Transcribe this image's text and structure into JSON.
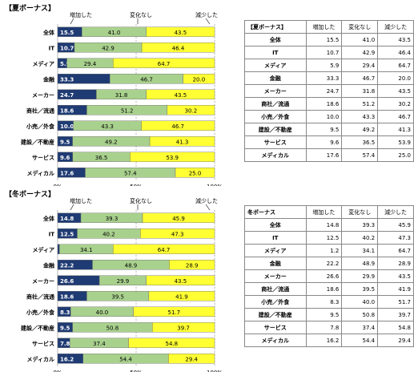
{
  "summer": {
    "section_title": "【夏ボーナス】",
    "legend": {
      "increase": "増加した",
      "nochange": "変化なし",
      "decrease": "減少した"
    },
    "table_header": [
      "【夏ボーナス】",
      "増加した",
      "変化なし",
      "減少した"
    ]
  },
  "winter": {
    "section_title": "【冬ボーナス】",
    "legend": {
      "increase": "増加した",
      "nochange": "変化なし",
      "decrease": "減少した"
    },
    "table_header": [
      "冬ボーナス",
      "増加した",
      "変化なし",
      "減少した"
    ]
  },
  "colors": {
    "increase": "#1f3b73",
    "nochange": "#a9d18e",
    "decrease": "#ffff33"
  },
  "chart_data": [
    {
      "type": "bar",
      "stacked": true,
      "orientation": "horizontal",
      "categories": [
        "全体",
        "IT",
        "メディア",
        "金融",
        "メーカー",
        "商社／流通",
        "小売／外食",
        "建設／不動産",
        "サービス",
        "メディカル"
      ],
      "series": [
        {
          "name": "増加した",
          "values": [
            15.5,
            10.7,
            5.9,
            33.3,
            24.7,
            18.6,
            10.0,
            9.5,
            9.6,
            17.6
          ]
        },
        {
          "name": "変化なし",
          "values": [
            41.0,
            42.9,
            29.4,
            46.7,
            31.8,
            51.2,
            43.3,
            49.2,
            36.5,
            57.4
          ]
        },
        {
          "name": "減少した",
          "values": [
            43.5,
            46.4,
            64.7,
            20.0,
            43.5,
            30.2,
            46.7,
            41.3,
            53.9,
            25.0
          ]
        }
      ],
      "xticks": [
        "0%",
        "50%",
        "100%"
      ],
      "xlim": [
        0,
        100
      ]
    },
    {
      "type": "bar",
      "stacked": true,
      "orientation": "horizontal",
      "categories": [
        "全体",
        "IT",
        "メディア",
        "金融",
        "メーカー",
        "商社／流通",
        "小売／外食",
        "建設／不動産",
        "サービス",
        "メディカル"
      ],
      "series": [
        {
          "name": "増加した",
          "values": [
            14.8,
            12.5,
            1.2,
            22.2,
            26.6,
            18.6,
            8.3,
            9.5,
            7.8,
            16.2
          ]
        },
        {
          "name": "変化なし",
          "values": [
            39.3,
            40.2,
            34.1,
            48.9,
            29.9,
            39.5,
            40.0,
            50.8,
            37.4,
            54.4
          ]
        },
        {
          "name": "減少した",
          "values": [
            45.9,
            47.3,
            64.7,
            28.9,
            43.5,
            41.9,
            51.7,
            39.7,
            54.8,
            29.4
          ]
        }
      ],
      "xticks": [
        "0%",
        "50%",
        "100%"
      ],
      "xlim": [
        0,
        100
      ]
    }
  ]
}
